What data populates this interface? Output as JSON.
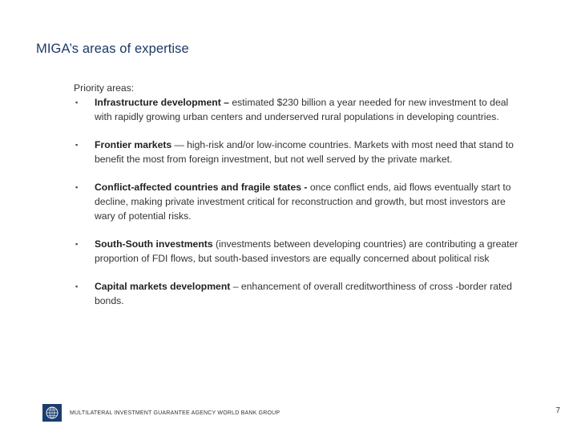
{
  "slide": {
    "title": "MIGA’s areas of expertise",
    "section_label": "Priority areas:",
    "bullets": [
      {
        "bold": "Infrastructure development –",
        "text": " estimated $230 billion a year needed for new investment to deal with rapidly growing urban centers and underserved rural populations in developing countries."
      },
      {
        "bold": "Frontier markets",
        "text": " — high-risk and/or low-income countries. Markets with most need that stand to benefit the most from foreign investment, but not well served by the private market."
      },
      {
        "bold": "Conflict-affected countries and fragile states -",
        "text": " once conflict ends, aid flows eventually start to decline, making private investment critical for reconstruction and growth, but most investors are wary of potential risks."
      },
      {
        "bold": "South-South investments",
        "text": " (investments between developing countries) are contributing a greater proportion of FDI flows, but south-based investors are equally concerned about political risk"
      },
      {
        "bold": "Capital markets development",
        "text": " – enhancement of overall creditworthiness of cross -border rated bonds."
      }
    ],
    "bullet_marker": "▪",
    "footer_text": "MULTILATERAL INVESTMENT GUARANTEE AGENCY WORLD BANK GROUP",
    "page_number": "7",
    "logo_icon": "miga-globe-logo",
    "colors": {
      "title": "#1c3a66",
      "logo_bg": "#1b3d6e"
    }
  }
}
